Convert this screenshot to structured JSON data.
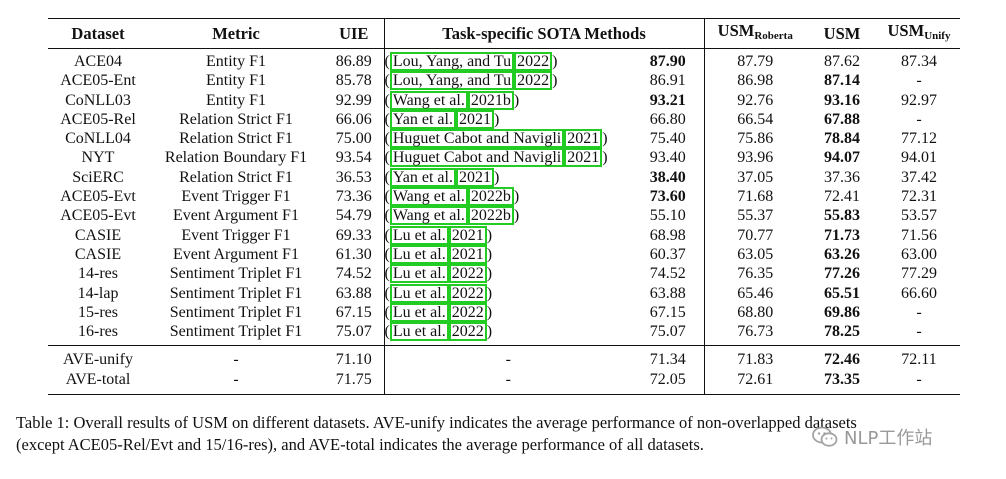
{
  "table": {
    "headers": {
      "dataset": "Dataset",
      "metric": "Metric",
      "uie": "UIE",
      "sota": "Task-specific SOTA Methods",
      "usm_roberta_main": "USM",
      "usm_roberta_sub": "Roberta",
      "usm": "USM",
      "usm_unify_main": "USM",
      "usm_unify_sub": "Unify"
    },
    "rows": [
      {
        "dataset": "ACE04",
        "metric": "Entity F1",
        "uie": "86.89",
        "cite_pre": "(",
        "cite_text": "Lou, Yang, and Tu",
        "cite_year": "2022",
        "cite_post": ")",
        "sota": "87.90",
        "sota_bold": true,
        "usm_roberta": "87.79",
        "usm": "87.62",
        "usm_bold": false,
        "usm_unify": "87.34"
      },
      {
        "dataset": "ACE05-Ent",
        "metric": "Entity F1",
        "uie": "85.78",
        "cite_pre": "(",
        "cite_text": "Lou, Yang, and Tu",
        "cite_year": "2022",
        "cite_post": ")",
        "sota": "86.91",
        "sota_bold": false,
        "usm_roberta": "86.98",
        "usm": "87.14",
        "usm_bold": true,
        "usm_unify": "-"
      },
      {
        "dataset": "CoNLL03",
        "metric": "Entity F1",
        "uie": "92.99",
        "cite_pre": "(",
        "cite_text": "Wang et al.",
        "cite_year": "2021b",
        "cite_post": ")",
        "sota": "93.21",
        "sota_bold": true,
        "usm_roberta": "92.76",
        "usm": "93.16",
        "usm_bold": true,
        "usm_unify": "92.97"
      },
      {
        "dataset": "ACE05-Rel",
        "metric": "Relation Strict F1",
        "uie": "66.06",
        "cite_pre": "(",
        "cite_text": "Yan et al.",
        "cite_year": "2021",
        "cite_post": ")",
        "sota": "66.80",
        "sota_bold": false,
        "usm_roberta": "66.54",
        "usm": "67.88",
        "usm_bold": true,
        "usm_unify": "-"
      },
      {
        "dataset": "CoNLL04",
        "metric": "Relation Strict F1",
        "uie": "75.00",
        "cite_pre": "(",
        "cite_text": "Huguet Cabot and Navigli",
        "cite_year": "2021",
        "cite_post": ")",
        "sota": "75.40",
        "sota_bold": false,
        "usm_roberta": "75.86",
        "usm": "78.84",
        "usm_bold": true,
        "usm_unify": "77.12"
      },
      {
        "dataset": "NYT",
        "metric": "Relation Boundary F1",
        "uie": "93.54",
        "cite_pre": "(",
        "cite_text": "Huguet Cabot and Navigli",
        "cite_year": "2021",
        "cite_post": ")",
        "sota": "93.40",
        "sota_bold": false,
        "usm_roberta": "93.96",
        "usm": "94.07",
        "usm_bold": true,
        "usm_unify": "94.01"
      },
      {
        "dataset": "SciERC",
        "metric": "Relation Strict F1",
        "uie": "36.53",
        "cite_pre": "(",
        "cite_text": "Yan et al.",
        "cite_year": "2021",
        "cite_post": ")",
        "sota": "38.40",
        "sota_bold": true,
        "usm_roberta": "37.05",
        "usm": "37.36",
        "usm_bold": false,
        "usm_unify": "37.42"
      },
      {
        "dataset": "ACE05-Evt",
        "metric": "Event Trigger F1",
        "uie": "73.36",
        "cite_pre": "(",
        "cite_text": "Wang et al.",
        "cite_year": "2022b",
        "cite_post": ")",
        "sota": "73.60",
        "sota_bold": true,
        "usm_roberta": "71.68",
        "usm": "72.41",
        "usm_bold": false,
        "usm_unify": "72.31"
      },
      {
        "dataset": "ACE05-Evt",
        "metric": "Event Argument F1",
        "uie": "54.79",
        "cite_pre": "(",
        "cite_text": "Wang et al.",
        "cite_year": "2022b",
        "cite_post": ")",
        "sota": "55.10",
        "sota_bold": false,
        "usm_roberta": "55.37",
        "usm": "55.83",
        "usm_bold": true,
        "usm_unify": "53.57"
      },
      {
        "dataset": "CASIE",
        "metric": "Event Trigger F1",
        "uie": "69.33",
        "cite_pre": "(",
        "cite_text": "Lu et al.",
        "cite_year": "2021",
        "cite_post": ")",
        "sota": "68.98",
        "sota_bold": false,
        "usm_roberta": "70.77",
        "usm": "71.73",
        "usm_bold": true,
        "usm_unify": "71.56"
      },
      {
        "dataset": "CASIE",
        "metric": "Event Argument F1",
        "uie": "61.30",
        "cite_pre": "(",
        "cite_text": "Lu et al.",
        "cite_year": "2021",
        "cite_post": ")",
        "sota": "60.37",
        "sota_bold": false,
        "usm_roberta": "63.05",
        "usm": "63.26",
        "usm_bold": true,
        "usm_unify": "63.00"
      },
      {
        "dataset": "14-res",
        "metric": "Sentiment Triplet F1",
        "uie": "74.52",
        "cite_pre": "(",
        "cite_text": "Lu et al.",
        "cite_year": "2022",
        "cite_post": ")",
        "sota": "74.52",
        "sota_bold": false,
        "usm_roberta": "76.35",
        "usm": "77.26",
        "usm_bold": true,
        "usm_unify": "77.29"
      },
      {
        "dataset": "14-lap",
        "metric": "Sentiment Triplet F1",
        "uie": "63.88",
        "cite_pre": "(",
        "cite_text": "Lu et al.",
        "cite_year": "2022",
        "cite_post": ")",
        "sota": "63.88",
        "sota_bold": false,
        "usm_roberta": "65.46",
        "usm": "65.51",
        "usm_bold": true,
        "usm_unify": "66.60"
      },
      {
        "dataset": "15-res",
        "metric": "Sentiment Triplet F1",
        "uie": "67.15",
        "cite_pre": "(",
        "cite_text": "Lu et al.",
        "cite_year": "2022",
        "cite_post": ")",
        "sota": "67.15",
        "sota_bold": false,
        "usm_roberta": "68.80",
        "usm": "69.86",
        "usm_bold": true,
        "usm_unify": "-"
      },
      {
        "dataset": "16-res",
        "metric": "Sentiment Triplet F1",
        "uie": "75.07",
        "cite_pre": "(",
        "cite_text": "Lu et al.",
        "cite_year": "2022",
        "cite_post": ")",
        "sota": "75.07",
        "sota_bold": false,
        "usm_roberta": "76.73",
        "usm": "78.25",
        "usm_bold": true,
        "usm_unify": "-"
      }
    ],
    "avg_rows": [
      {
        "dataset": "AVE-unify",
        "metric": "-",
        "uie": "71.10",
        "method": "-",
        "sota": "71.34",
        "usm_roberta": "71.83",
        "usm": "72.46",
        "usm_unify": "72.11"
      },
      {
        "dataset": "AVE-total",
        "metric": "-",
        "uie": "71.75",
        "method": "-",
        "sota": "72.05",
        "usm_roberta": "72.61",
        "usm": "73.35",
        "usm_unify": "-"
      }
    ]
  },
  "caption": {
    "line1": "Table 1: Overall results of USM on different datasets. AVE-unify indicates the average performance of non-overlapped datasets",
    "line2": "(except ACE05-Rel/Evt and 15/16-res), and AVE-total indicates the average performance of all datasets."
  },
  "watermark": {
    "text": "NLP工作站",
    "icon": "wechat-icon"
  }
}
